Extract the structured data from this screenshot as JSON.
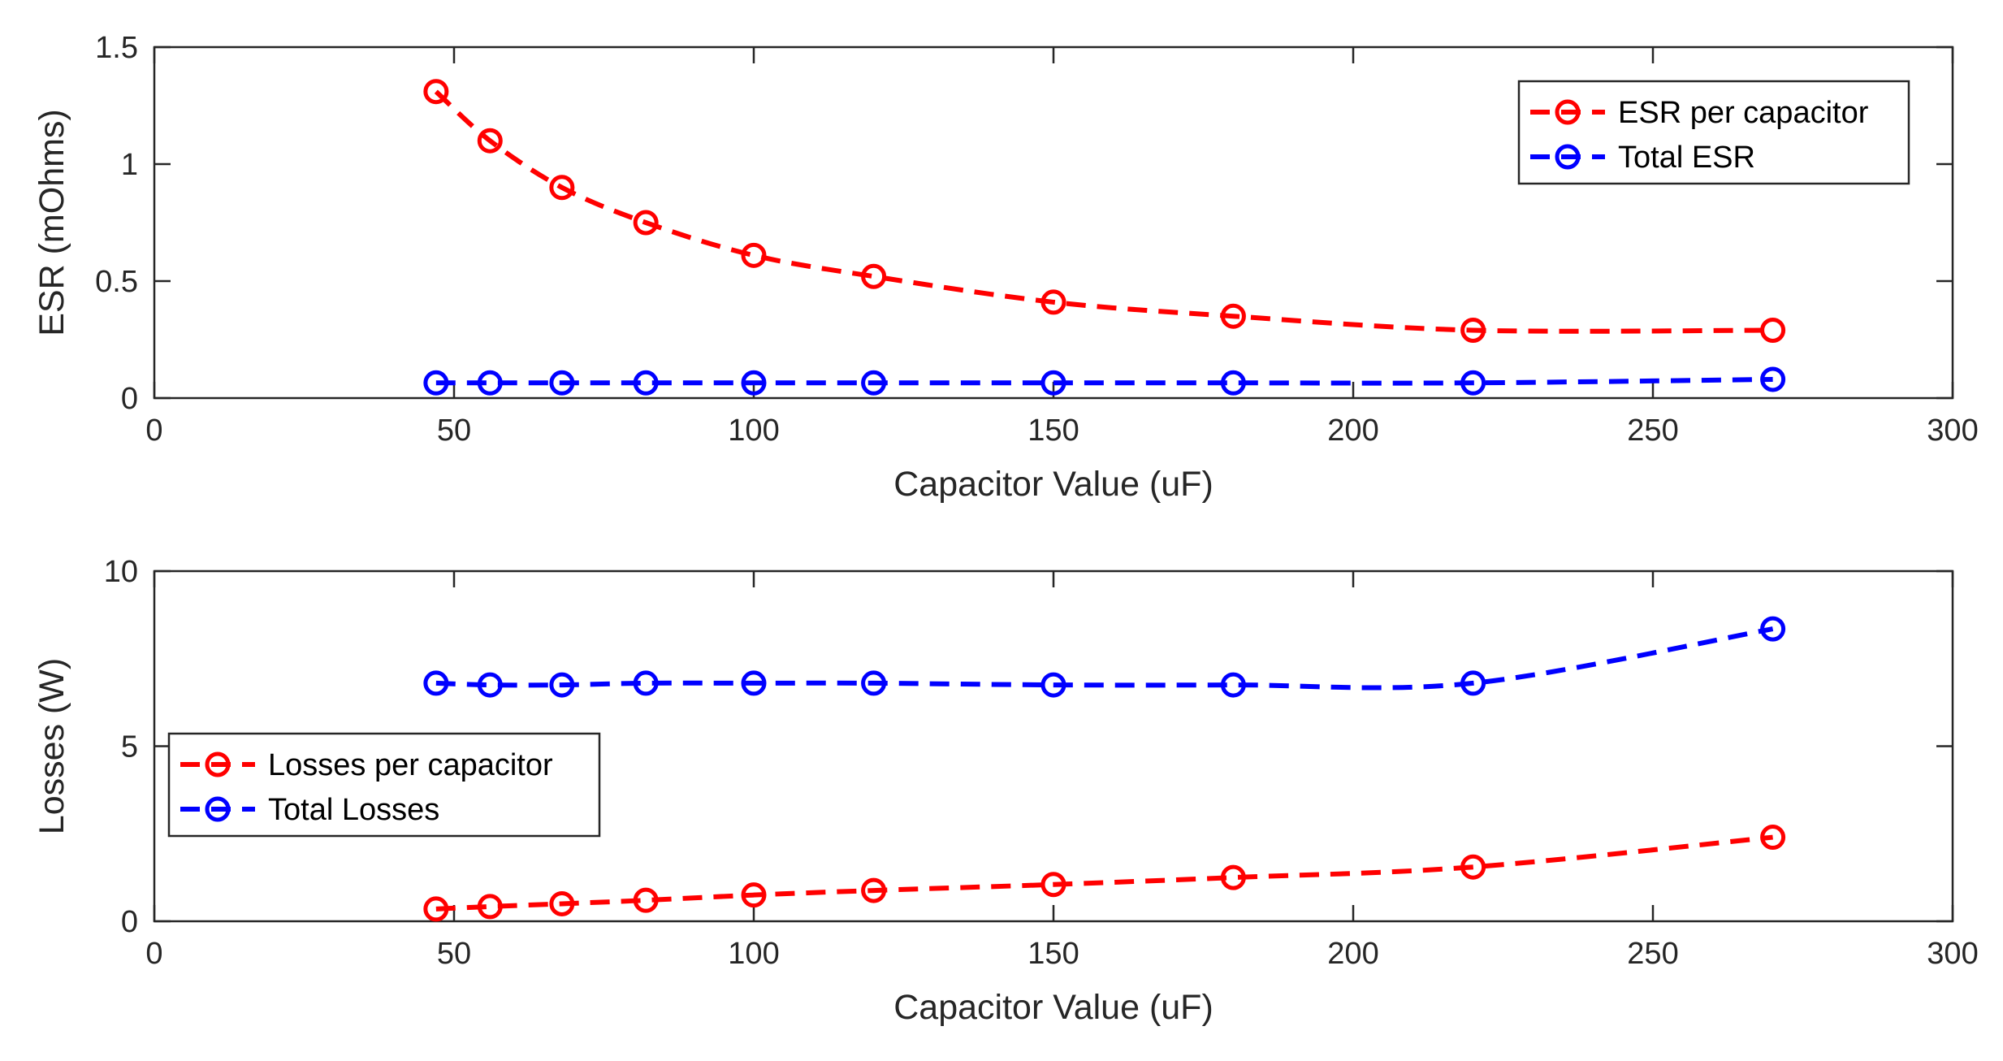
{
  "chart_data": [
    {
      "type": "line",
      "xlabel": "Capacitor Value (uF)",
      "ylabel": "ESR (mOhms)",
      "xlim": [
        0,
        300
      ],
      "ylim": [
        0,
        1.5
      ],
      "xticks": [
        "0",
        "50",
        "100",
        "150",
        "200",
        "250",
        "300"
      ],
      "yticks": [
        "0",
        "0.5",
        "1",
        "1.5"
      ],
      "legend_position": "top-right",
      "x": [
        47,
        56,
        68,
        82,
        100,
        120,
        150,
        180,
        220,
        270
      ],
      "series": [
        {
          "name": "ESR per capacitor",
          "color": "#ff0000",
          "values": [
            1.31,
            1.1,
            0.9,
            0.75,
            0.61,
            0.52,
            0.41,
            0.35,
            0.29,
            0.29
          ]
        },
        {
          "name": "Total ESR",
          "color": "#0000ff",
          "values": [
            0.065,
            0.065,
            0.065,
            0.065,
            0.065,
            0.065,
            0.065,
            0.065,
            0.065,
            0.08
          ]
        }
      ]
    },
    {
      "type": "line",
      "xlabel": "Capacitor Value (uF)",
      "ylabel": "Losses (W)",
      "xlim": [
        0,
        300
      ],
      "ylim": [
        0,
        10
      ],
      "xticks": [
        "0",
        "50",
        "100",
        "150",
        "200",
        "250",
        "300"
      ],
      "yticks": [
        "0",
        "5",
        "10"
      ],
      "legend_position": "middle-left",
      "x": [
        47,
        56,
        68,
        82,
        100,
        120,
        150,
        180,
        220,
        270
      ],
      "series": [
        {
          "name": "Losses per capacitor",
          "color": "#ff0000",
          "values": [
            0.35,
            0.42,
            0.5,
            0.6,
            0.75,
            0.88,
            1.05,
            1.25,
            1.55,
            2.4
          ]
        },
        {
          "name": "Total Losses",
          "color": "#0000ff",
          "values": [
            6.8,
            6.75,
            6.75,
            6.8,
            6.8,
            6.8,
            6.75,
            6.75,
            6.8,
            8.35
          ]
        }
      ]
    }
  ]
}
